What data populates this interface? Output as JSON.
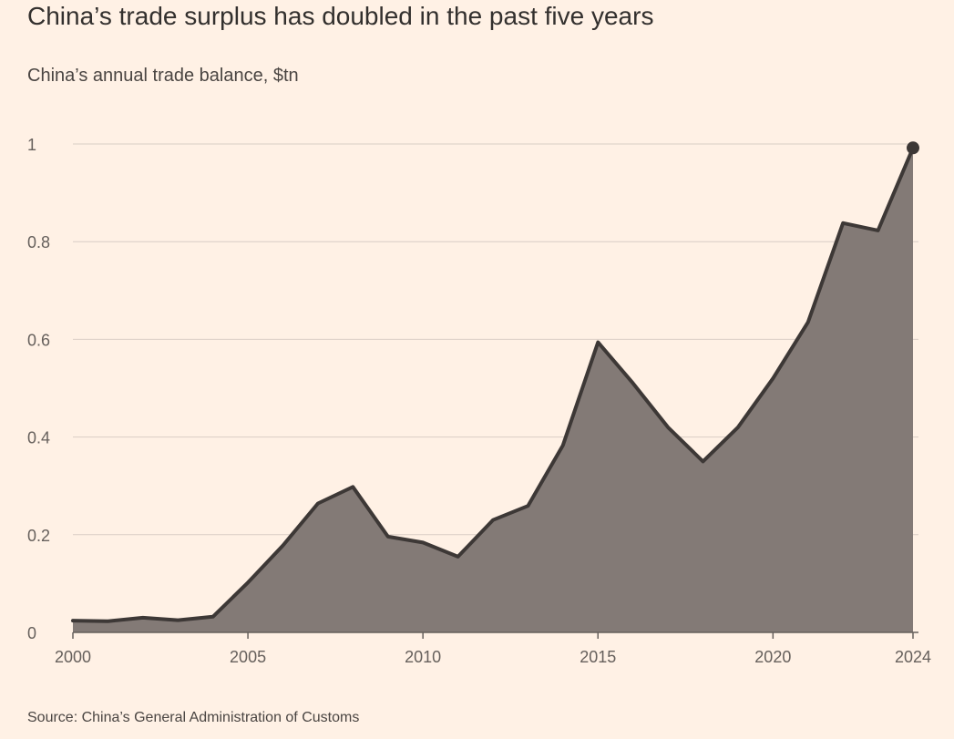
{
  "title": "China’s trade surplus has doubled in the past five years",
  "subtitle": "China’s annual trade balance, $tn",
  "source": "Source: China’s General Administration of Customs",
  "colors": {
    "background": "#fff1e5",
    "area_fill": "#837a76",
    "line": "#3d3836",
    "grid": "#d9cec5",
    "tick_text": "#66605c"
  },
  "chart_data": {
    "type": "area",
    "x": [
      2000,
      2001,
      2002,
      2003,
      2004,
      2005,
      2006,
      2007,
      2008,
      2009,
      2010,
      2011,
      2012,
      2013,
      2014,
      2015,
      2016,
      2017,
      2018,
      2019,
      2020,
      2021,
      2022,
      2023,
      2024
    ],
    "values": [
      0.024,
      0.023,
      0.03,
      0.025,
      0.032,
      0.102,
      0.178,
      0.264,
      0.298,
      0.196,
      0.184,
      0.155,
      0.23,
      0.259,
      0.383,
      0.594,
      0.51,
      0.42,
      0.35,
      0.42,
      0.52,
      0.635,
      0.838,
      0.823,
      0.992
    ],
    "xlim": [
      2000,
      2024
    ],
    "ylim": [
      0,
      1
    ],
    "x_ticks": [
      "2000",
      "2005",
      "2010",
      "2015",
      "2020",
      "2024"
    ],
    "y_ticks": [
      "0",
      "0.2",
      "0.4",
      "0.6",
      "0.8",
      "1"
    ],
    "grid": "horizontal",
    "end_marker": true
  }
}
